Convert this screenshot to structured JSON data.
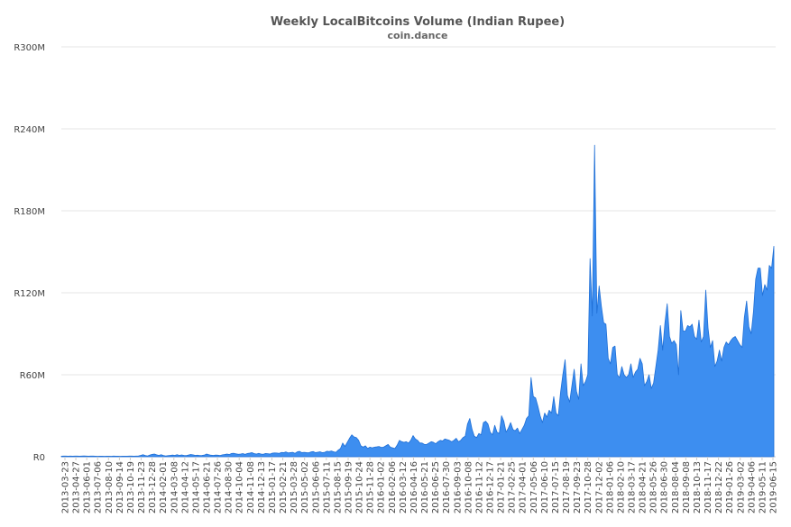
{
  "chart_data": {
    "type": "area",
    "title": "Weekly LocalBitcoins Volume (Indian Rupee)",
    "subtitle": "coin.dance",
    "xlabel": "",
    "ylabel": "",
    "ylim": [
      0,
      300000000
    ],
    "yticks": [
      {
        "value": 0,
        "label": "R0"
      },
      {
        "value": 60000000,
        "label": "R60M"
      },
      {
        "value": 120000000,
        "label": "R120M"
      },
      {
        "value": 180000000,
        "label": "R180M"
      },
      {
        "value": 240000000,
        "label": "R240M"
      },
      {
        "value": 300000000,
        "label": "R300M"
      }
    ],
    "grid": true,
    "legend": "none",
    "fill_color": "#3d8ef0",
    "line_color": "#1f6fd6",
    "x_tick_labels": [
      "2013-03-23",
      "2013-04-27",
      "2013-06-01",
      "2013-07-06",
      "2013-08-10",
      "2013-09-14",
      "2013-10-19",
      "2013-11-23",
      "2013-12-28",
      "2014-02-01",
      "2014-03-08",
      "2014-04-12",
      "2014-05-17",
      "2014-06-21",
      "2014-07-26",
      "2014-08-30",
      "2014-10-04",
      "2014-11-08",
      "2014-12-13",
      "2015-01-17",
      "2015-02-21",
      "2015-03-28",
      "2015-05-02",
      "2015-06-06",
      "2015-07-11",
      "2015-08-15",
      "2015-09-19",
      "2015-10-24",
      "2015-11-28",
      "2016-01-02",
      "2016-02-06",
      "2016-03-12",
      "2016-04-16",
      "2016-05-21",
      "2016-06-25",
      "2016-07-30",
      "2016-09-03",
      "2016-10-08",
      "2016-11-12",
      "2016-12-17",
      "2017-01-21",
      "2017-02-25",
      "2017-04-01",
      "2017-05-06",
      "2017-06-10",
      "2017-07-15",
      "2017-08-19",
      "2017-09-23",
      "2017-10-28",
      "2017-12-02",
      "2018-01-06",
      "2018-02-10",
      "2018-03-17",
      "2018-04-21",
      "2018-05-26",
      "2018-06-30",
      "2018-08-04",
      "2018-09-08",
      "2018-10-13",
      "2018-11-17",
      "2018-12-22",
      "2019-01-26",
      "2019-03-02",
      "2019-04-06",
      "2019-05-11",
      "2019-06-15"
    ],
    "series": [
      {
        "values": [
          0.4,
          0.5,
          0.5,
          0.4,
          0.5,
          0.4,
          0.5,
          0.5,
          0.4,
          0.5,
          0.6,
          0.5,
          0.4,
          0.5,
          0.5,
          0.4,
          0.3,
          0.4,
          0.4,
          0.3,
          0.4,
          0.4,
          0.3,
          0.5,
          0.4,
          0.4,
          0.3,
          0.4,
          0.4,
          0.4,
          0.5,
          0.5,
          0.4,
          0.5,
          0.6,
          1.0,
          1.5,
          0.9,
          0.6,
          1.2,
          1.7,
          2.0,
          1.4,
          1.0,
          1.5,
          0.9,
          0.6,
          0.8,
          1.0,
          1.2,
          1.0,
          1.5,
          1.0,
          1.3,
          1.0,
          0.8,
          1.2,
          1.6,
          1.4,
          1.0,
          1.1,
          0.9,
          1.0,
          1.2,
          2.0,
          1.5,
          1.1,
          1.0,
          1.2,
          1.1,
          0.9,
          1.4,
          1.6,
          2.0,
          1.6,
          2.4,
          2.5,
          2.1,
          1.8,
          2.0,
          2.3,
          1.7,
          2.4,
          2.6,
          3.0,
          2.3,
          2.0,
          2.5,
          2.0,
          1.8,
          2.4,
          2.2,
          2.0,
          2.6,
          2.8,
          2.7,
          2.5,
          3.1,
          3.0,
          3.5,
          2.8,
          3.0,
          3.2,
          2.5,
          3.6,
          3.9,
          3.0,
          3.2,
          3.0,
          2.9,
          3.5,
          3.8,
          3.0,
          3.3,
          3.6,
          3.0,
          3.2,
          4.0,
          3.8,
          4.2,
          3.6,
          3.2,
          4.8,
          6.0,
          10.0,
          7.5,
          10.5,
          13.5,
          16.0,
          14.5,
          14.0,
          12.0,
          8.0,
          7.0,
          8.0,
          6.0,
          7.0,
          6.5,
          7.0,
          7.2,
          7.5,
          6.8,
          7.0,
          8.0,
          9.0,
          7.0,
          6.5,
          6.0,
          8.5,
          12.0,
          11.0,
          10.5,
          11.0,
          10.0,
          12.0,
          15.5,
          13.0,
          12.0,
          10.0,
          10.0,
          9.0,
          9.0,
          10.0,
          11.0,
          10.5,
          9.5,
          11.0,
          12.0,
          11.5,
          13.0,
          12.5,
          12.0,
          11.0,
          12.0,
          13.5,
          11.0,
          12.0,
          14.0,
          15.0,
          24.0,
          28.0,
          20.0,
          15.0,
          14.0,
          17.0,
          16.0,
          25.0,
          26.0,
          24.0,
          18.0,
          16.0,
          23.0,
          18.0,
          17.0,
          30.0,
          26.0,
          18.0,
          21.0,
          25.0,
          20.0,
          19.0,
          21.0,
          17.0,
          20.0,
          23.0,
          28.0,
          30.0,
          58.0,
          44.0,
          43.0,
          37.0,
          30.0,
          25.0,
          32.0,
          29.0,
          34.0,
          32.0,
          44.0,
          32.0,
          30.0,
          47.0,
          60.0,
          71.0,
          45.0,
          40.0,
          52.0,
          64.0,
          48.0,
          42.0,
          68.0,
          52.0,
          55.0,
          60.0,
          145.0,
          103.0,
          228.0,
          105.0,
          125.0,
          110.0,
          98.0,
          97.0,
          72.0,
          68.0,
          80.0,
          81.0,
          60.0,
          58.0,
          66.0,
          60.0,
          58.0,
          60.0,
          68.0,
          58.0,
          62.0,
          64.0,
          72.0,
          68.0,
          52.0,
          55.0,
          60.0,
          50.0,
          54.0,
          66.0,
          78.0,
          96.0,
          78.0,
          98.0,
          112.0,
          88.0,
          83.0,
          85.0,
          82.0,
          60.0,
          107.0,
          92.0,
          92.0,
          96.0,
          95.0,
          97.0,
          88.0,
          86.0,
          100.0,
          84.0,
          88.0,
          122.0,
          94.0,
          80.0,
          85.0,
          66.0,
          70.0,
          78.0,
          70.0,
          80.0,
          84.0,
          82.0,
          85.0,
          87.0,
          88.0,
          85.0,
          82.0,
          80.0,
          102.0,
          114.0,
          95.0,
          90.0,
          106.0,
          130.0,
          138.0,
          138.0,
          118.0,
          126.0,
          122.0,
          140.0,
          138.0,
          154.0
        ],
        "unit_multiplier": 1000000
      }
    ]
  }
}
